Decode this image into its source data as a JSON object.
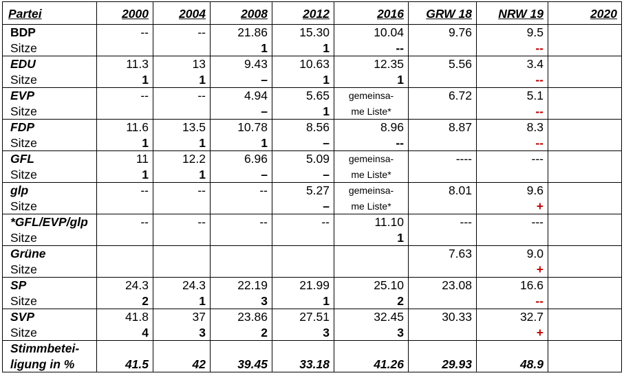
{
  "header": {
    "party": "Partei",
    "years": [
      "2000",
      "2004",
      "2008",
      "2012",
      "2016",
      "GRW 18",
      "NRW 19",
      "2020"
    ]
  },
  "rows": [
    {
      "party": "BDP",
      "italic": false,
      "seats_label": "Sitze",
      "votes": [
        "--",
        "--",
        "21.86",
        "15.30",
        "10.04",
        "9.76",
        "9.5",
        ""
      ],
      "seats": [
        "",
        "",
        "1",
        "1",
        "--",
        "",
        "--",
        ""
      ]
    },
    {
      "party": "EDU",
      "italic": true,
      "seats_label": "Sitze",
      "votes": [
        "11.3",
        "13",
        "9.43",
        "10.63",
        "12.35",
        "5.56",
        "3.4",
        ""
      ],
      "seats": [
        "1",
        "1",
        "–",
        "1",
        "1",
        "",
        "--",
        ""
      ]
    },
    {
      "party": "EVP",
      "italic": true,
      "seats_label": "Sitze",
      "votes": [
        "--",
        "--",
        "4.94",
        "5.65",
        "gemeinsa-",
        "6.72",
        "5.1",
        ""
      ],
      "seats": [
        "",
        "",
        "–",
        "1",
        "me Liste*",
        "",
        "--",
        ""
      ]
    },
    {
      "party": "FDP",
      "italic": true,
      "seats_label": "Sitze",
      "votes": [
        "11.6",
        "13.5",
        "10.78",
        "8.56",
        "8.96",
        "8.87",
        "8.3",
        ""
      ],
      "seats": [
        "1",
        "1",
        "1",
        "–",
        "--",
        "",
        "--",
        ""
      ]
    },
    {
      "party": "GFL",
      "italic": true,
      "seats_label": "Sitze",
      "votes": [
        "11",
        "12.2",
        "6.96",
        "5.09",
        "gemeinsa-",
        "----",
        "---",
        ""
      ],
      "seats": [
        "1",
        "1",
        "–",
        "–",
        "me Liste*",
        "",
        "",
        ""
      ]
    },
    {
      "party": "glp",
      "italic": true,
      "seats_label": "Sitze",
      "votes": [
        "--",
        "--",
        "--",
        "5.27",
        "gemeinsa-",
        "8.01",
        "9.6",
        ""
      ],
      "seats": [
        "",
        "",
        "",
        "–",
        "me Liste*",
        "",
        "+",
        ""
      ]
    },
    {
      "party": "*GFL/EVP/glp",
      "italic": true,
      "seats_label": "Sitze",
      "votes": [
        "--",
        "--",
        "--",
        "--",
        "11.10",
        "---",
        "---",
        ""
      ],
      "seats": [
        "",
        "",
        "",
        "",
        "1",
        "",
        "",
        ""
      ]
    },
    {
      "party": "Grüne",
      "italic": true,
      "seats_label": "Sitze",
      "votes": [
        "",
        "",
        "",
        "",
        "",
        "7.63",
        "9.0",
        ""
      ],
      "seats": [
        "",
        "",
        "",
        "",
        "",
        "",
        "+",
        ""
      ]
    },
    {
      "party": "SP",
      "italic": true,
      "seats_label": "Sitze",
      "votes": [
        "24.3",
        "24.3",
        "22.19",
        "21.99",
        "25.10",
        "23.08",
        "16.6",
        ""
      ],
      "seats": [
        "2",
        "1",
        "3",
        "1",
        "2",
        "",
        "--",
        ""
      ]
    },
    {
      "party": "SVP",
      "italic": true,
      "seats_label": "Sitze",
      "votes": [
        "41.8",
        "37",
        "23.86",
        "27.51",
        "32.45",
        "30.33",
        "32.7",
        ""
      ],
      "seats": [
        "4",
        "3",
        "2",
        "3",
        "3",
        "",
        "+",
        ""
      ]
    }
  ],
  "turnout": {
    "label_line1": "Stimmbetei-",
    "label_line2": "ligung in %",
    "values": [
      "41.5",
      "42",
      "39.45",
      "33.18",
      "41.26",
      "29.93",
      "48.9",
      ""
    ]
  },
  "colors": {
    "change_marker": "#c00000",
    "border": "#000000"
  }
}
